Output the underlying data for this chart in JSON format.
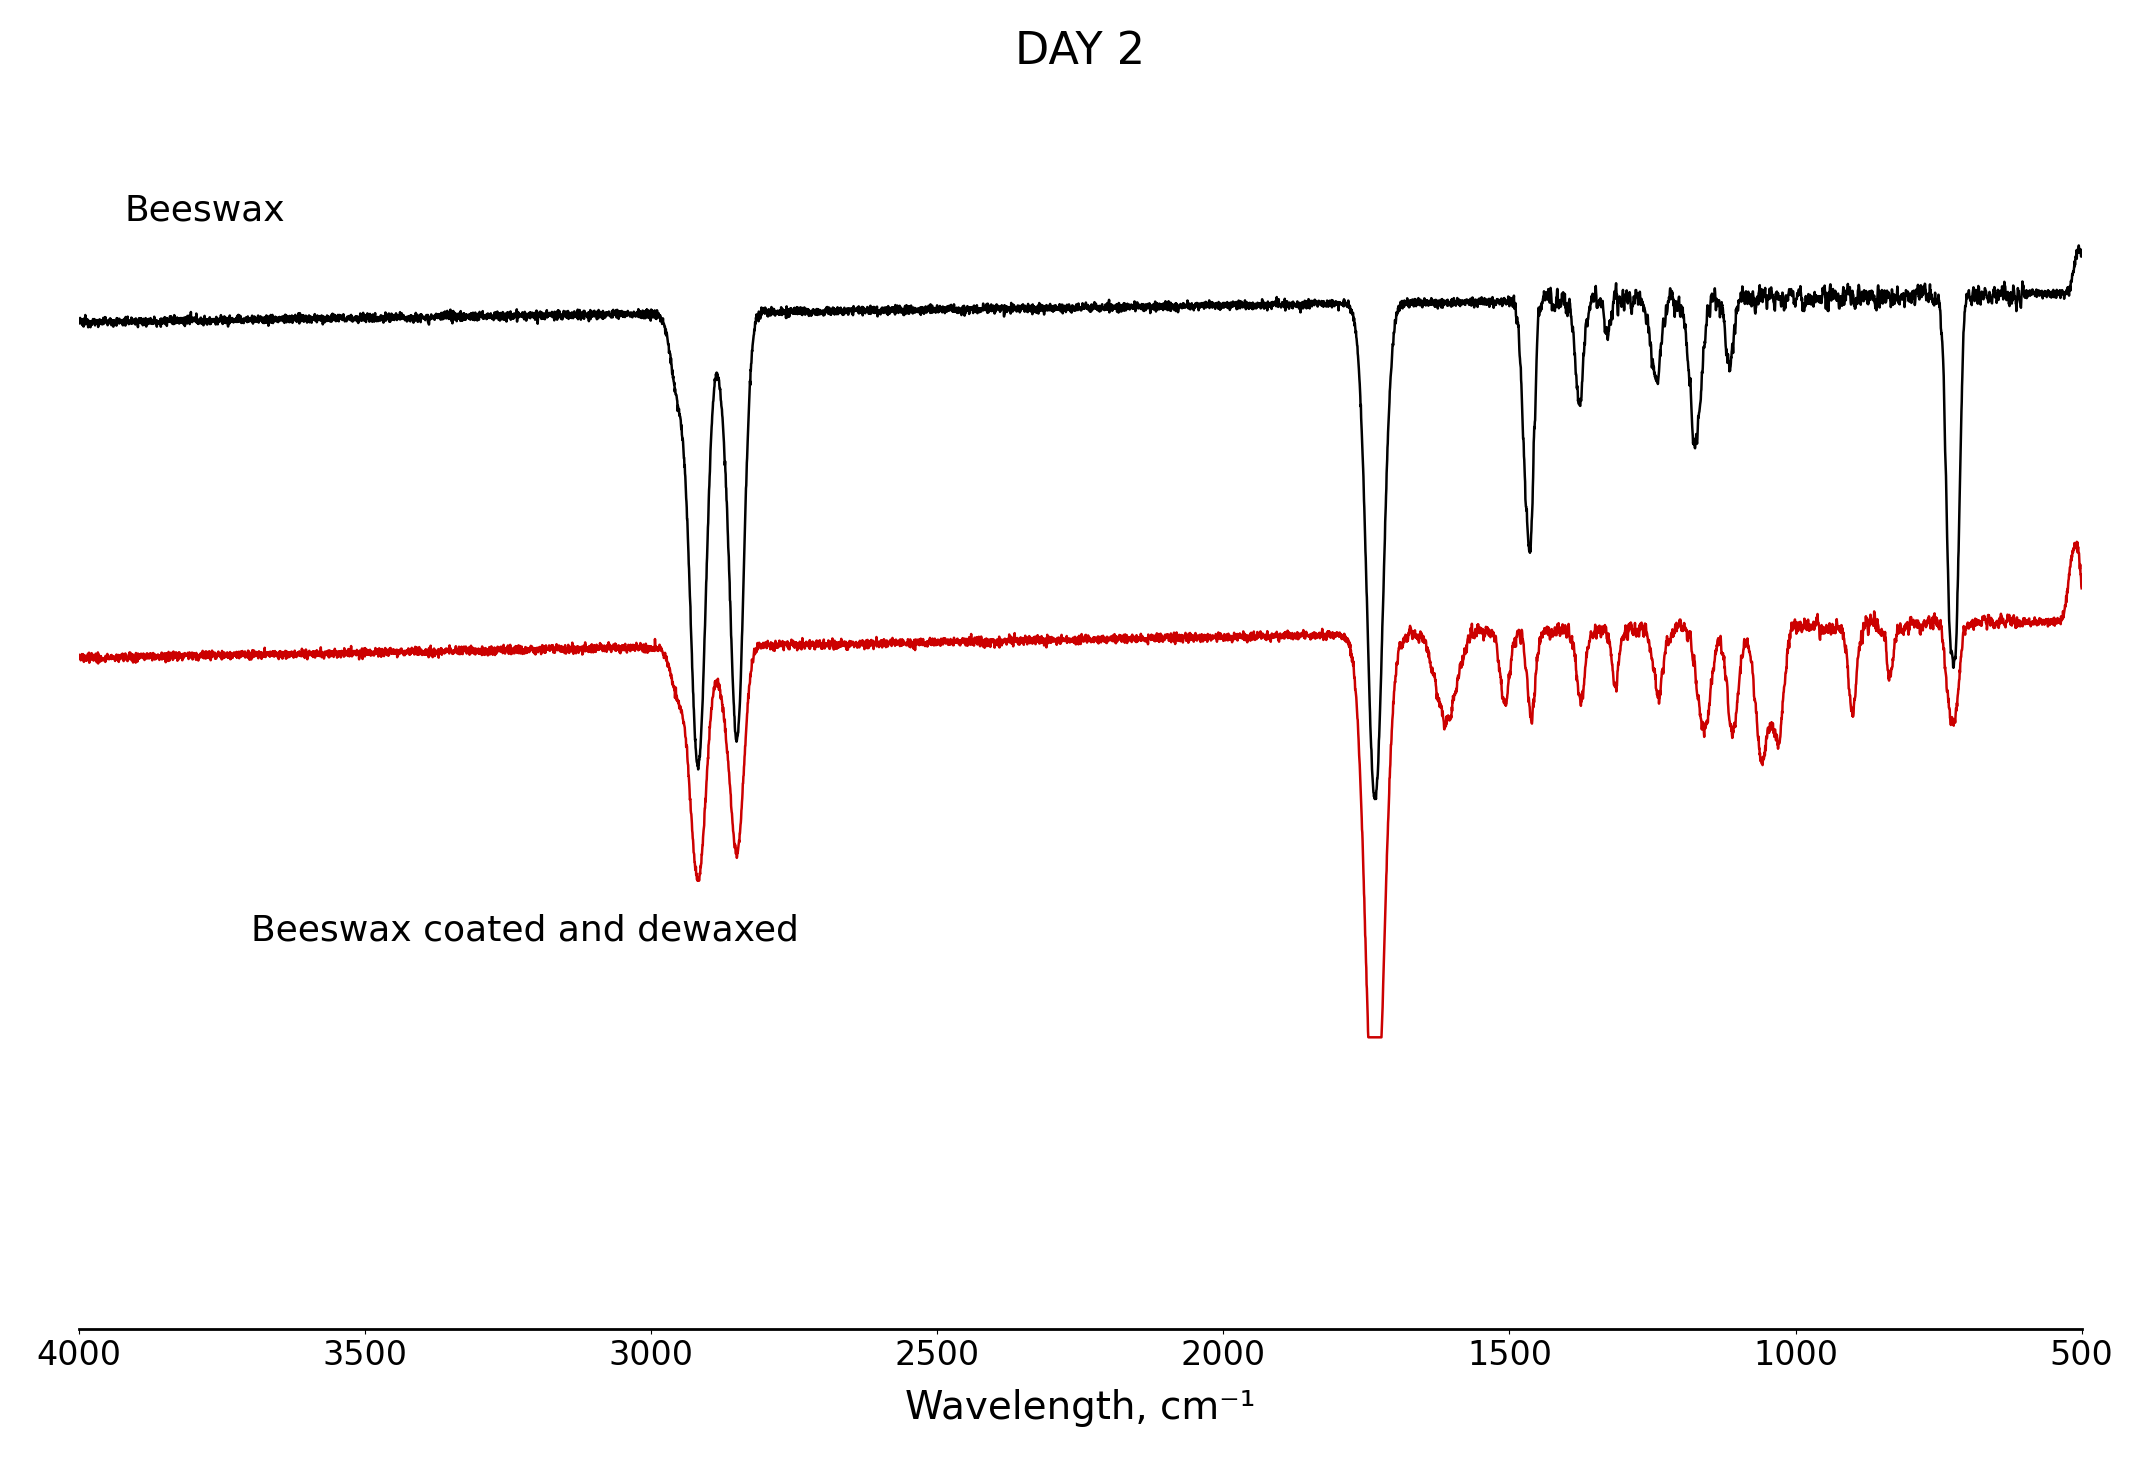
{
  "title": "DAY 2",
  "title_fontsize": 32,
  "xlabel": "Wavelength, cm⁻¹",
  "xlabel_fontsize": 28,
  "label_black": "Beeswax",
  "label_red": "Beeswax coated and dewaxed",
  "label_fontsize": 26,
  "xmin": 500,
  "xmax": 4000,
  "color_black": "#000000",
  "color_red": "#cc0000",
  "line_width": 1.8,
  "figsize": [
    21.5,
    14.71
  ],
  "dpi": 100,
  "xticks": [
    4000,
    3500,
    3000,
    2500,
    2000,
    1500,
    1000,
    500
  ],
  "tick_fontsize": 24,
  "black_baseline": 0.78,
  "red_baseline": 0.32,
  "noise_level_flat": 0.003,
  "noise_level_finger": 0.008
}
